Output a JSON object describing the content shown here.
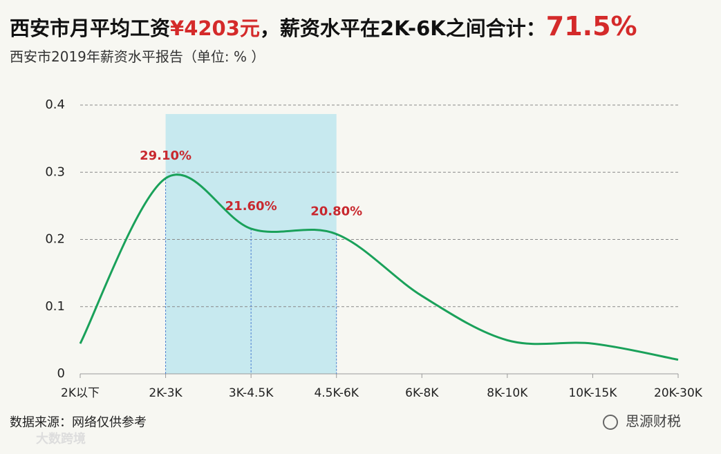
{
  "chart_data": {
    "type": "line",
    "title": [
      "西安市月平均工资",
      "¥4203元",
      "，薪资水平在2K-6K之间合计：",
      "71.5%"
    ],
    "subtitle": "西安市2019年薪资水平报告（单位: % ）",
    "source": "数据来源：网络仅供参考",
    "watermarks": [
      "大数跨境",
      "思源财税"
    ],
    "categories": [
      "2K以下",
      "2K-3K",
      "3K-4.5K",
      "4.5K-6K",
      "6K-8K",
      "8K-10K",
      "10K-15K",
      "20K-30K"
    ],
    "values": [
      0.045,
      0.291,
      0.216,
      0.208,
      0.116,
      0.05,
      0.045,
      0.021
    ],
    "value_labels": [
      null,
      "29.10%",
      "21.60%",
      "20.80%",
      null,
      null,
      null,
      null
    ],
    "color": "#1aa15a",
    "ylim": [
      0,
      0.4
    ],
    "yticks": [
      0,
      0.1,
      0.2,
      0.3,
      0.4
    ],
    "grid": true
  }
}
